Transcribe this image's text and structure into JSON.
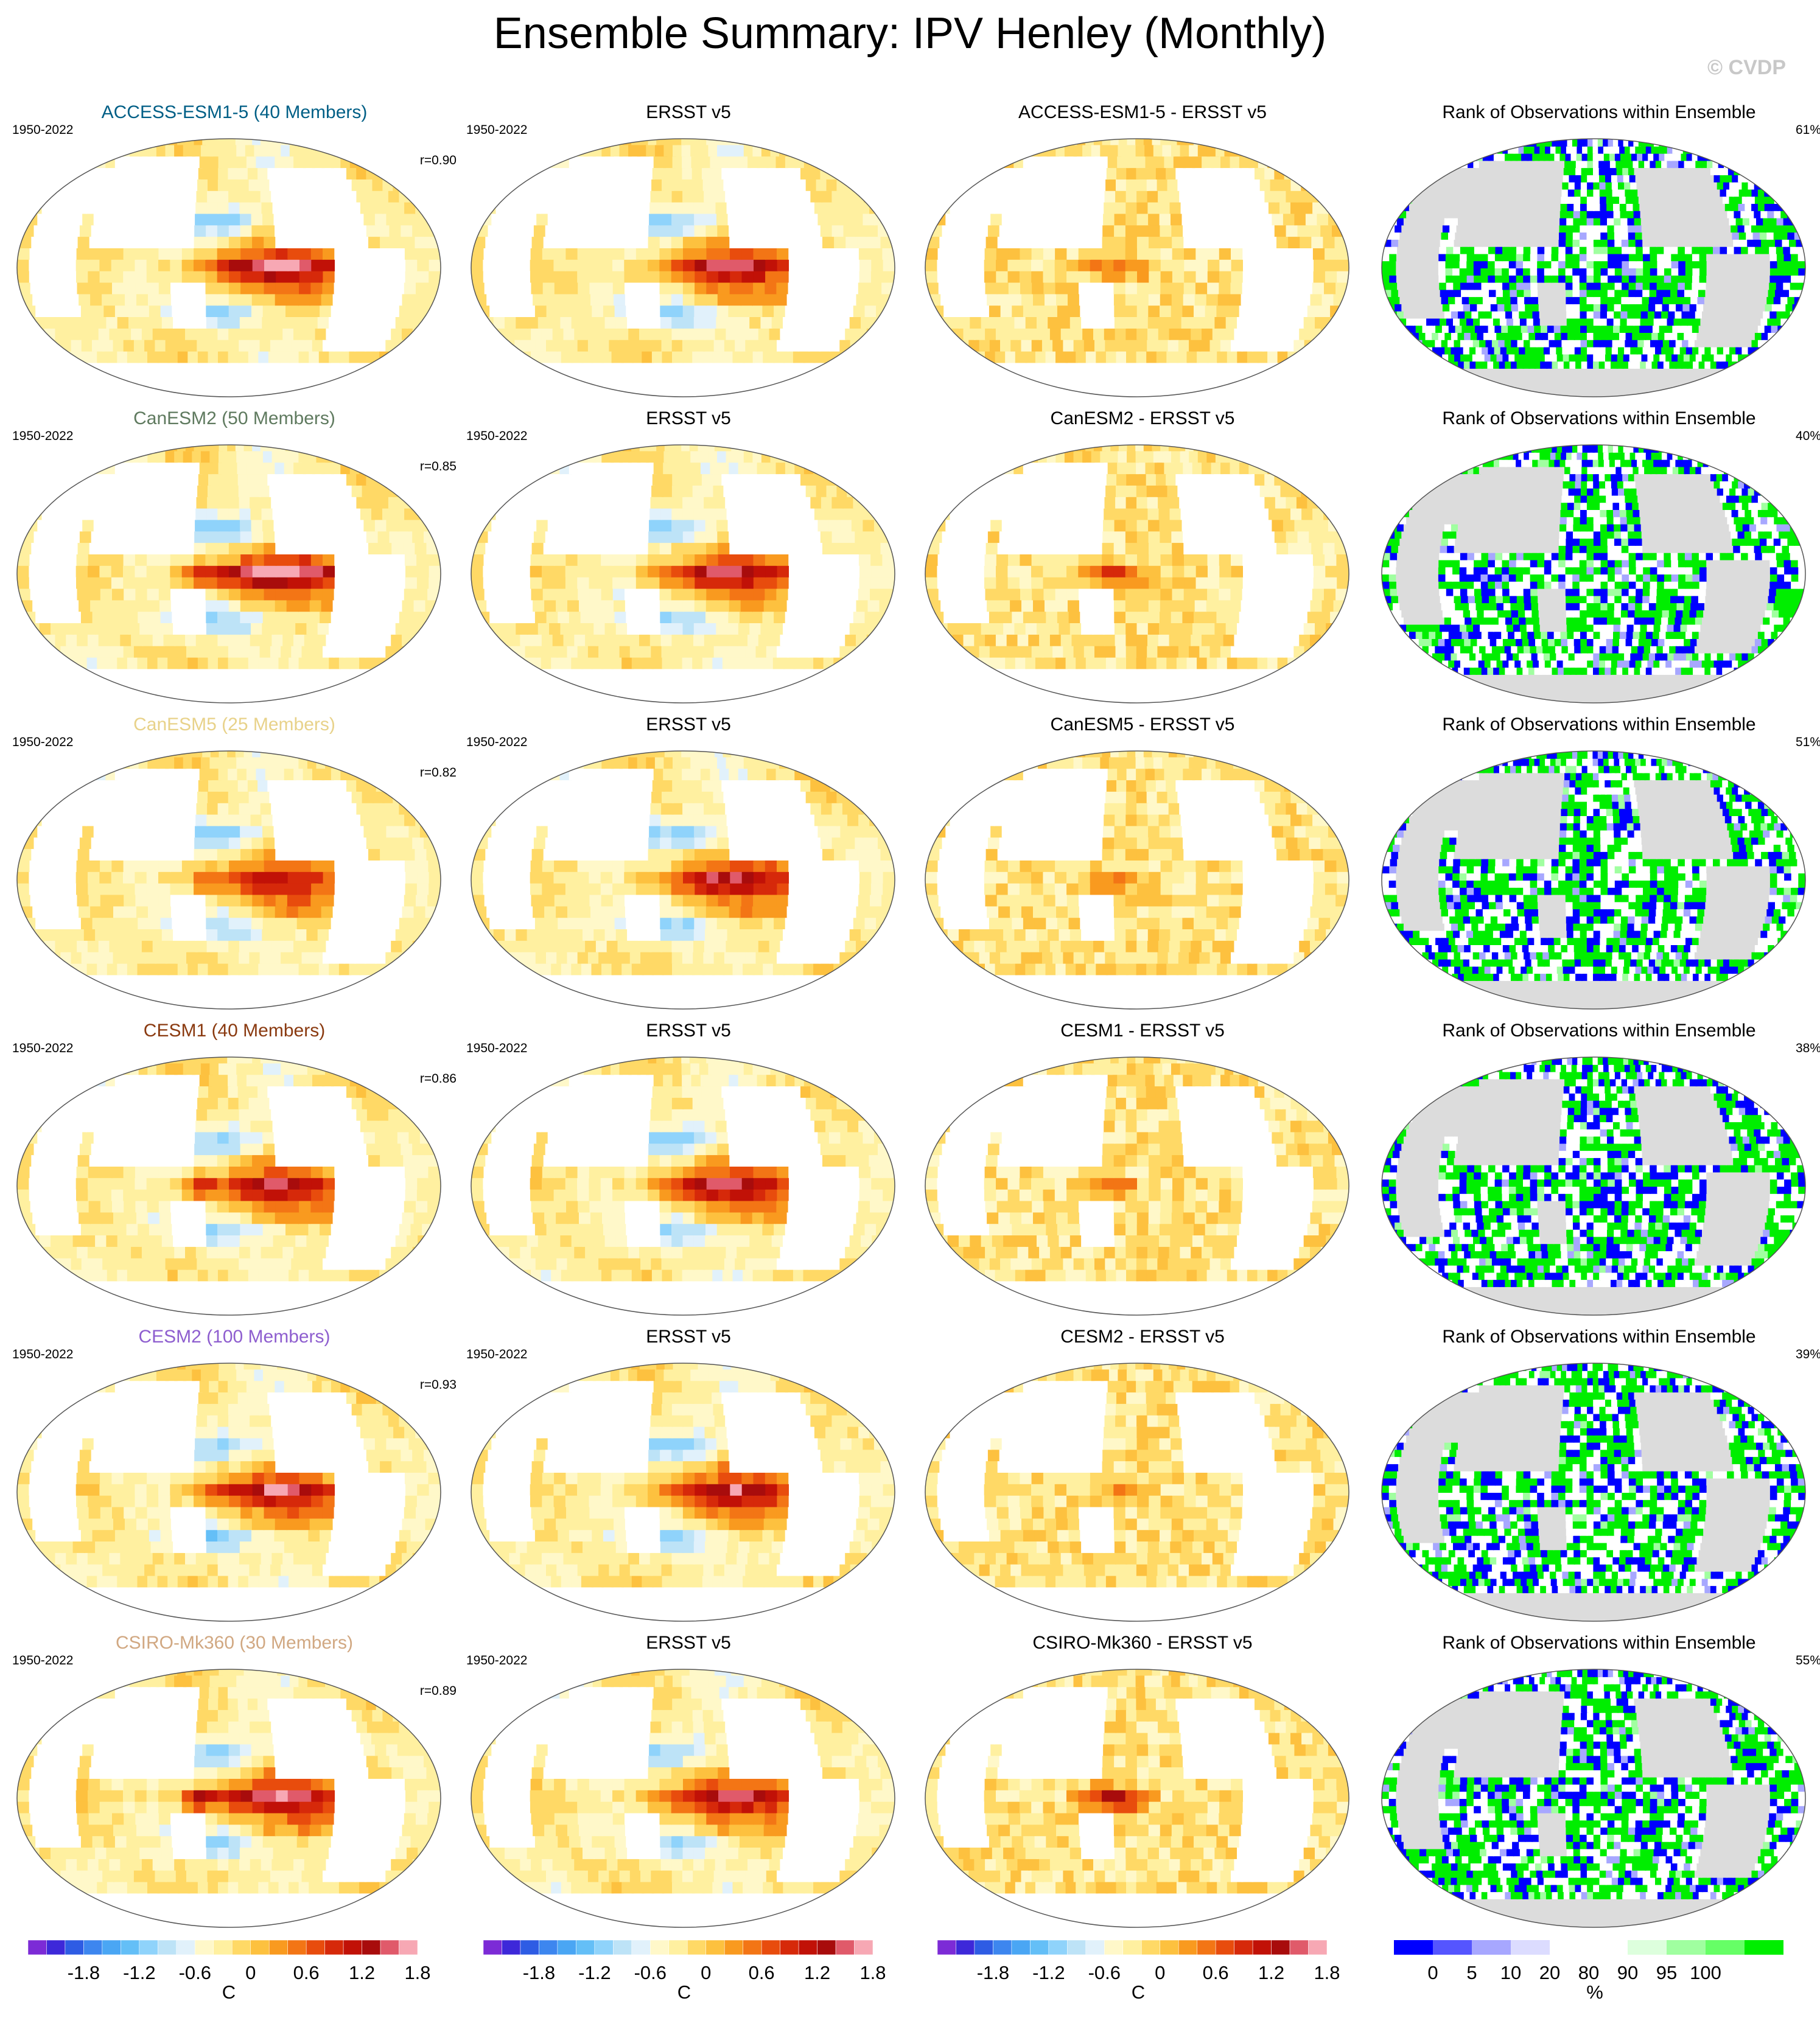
{
  "title": "Ensemble Summary: IPV Henley (Monthly)",
  "copyright": "© CVDP",
  "colors": {
    "anomaly_scale": [
      "#7c2bd6",
      "#3d28d9",
      "#2e5ce4",
      "#3d86ef",
      "#4aa6f4",
      "#64bff7",
      "#8fd3fb",
      "#bde3f7",
      "#e1f1fb",
      "#fff8c9",
      "#fff0a0",
      "#ffd966",
      "#fdc13f",
      "#f99a1f",
      "#f37515",
      "#e84c0d",
      "#d6290a",
      "#c11107",
      "#a80c0c",
      "#e05a6a",
      "#f7a8b4"
    ],
    "rank_scale": [
      "#0000ff",
      "#5555ff",
      "#a7a7ff",
      "#dcdcff",
      "#ffffff",
      "#ffffff",
      "#ddffdd",
      "#a0ffa0",
      "#66ff66",
      "#00ee00"
    ],
    "land_rank": "#dcdcdc",
    "outline": "#555555"
  },
  "rows": [
    {
      "model": "ACCESS-ESM1-5 (40 Members)",
      "model_color": "#005f86",
      "years": "1950-2022",
      "corr": "r=0.90",
      "obs_title": "ERSST v5",
      "obs_years": "1950-2022",
      "diff_title": "ACCESS-ESM1-5 - ERSST v5",
      "rank_title": "Rank of Observations within Ensemble",
      "rank_pct": "61%",
      "amp": 1.8,
      "warm_pool": 0.0,
      "diff_amp": 0.8,
      "rank_seed": 11
    },
    {
      "model": "CanESM2 (50 Members)",
      "model_color": "#5f7a5f",
      "years": "1950-2022",
      "corr": "r=0.85",
      "obs_title": "ERSST v5",
      "obs_years": "1950-2022",
      "diff_title": "CanESM2 - ERSST v5",
      "rank_title": "Rank of Observations within Ensemble",
      "rank_pct": "40%",
      "amp": 2.0,
      "warm_pool": 0.6,
      "diff_amp": 1.2,
      "rank_seed": 23
    },
    {
      "model": "CanESM5 (25 Members)",
      "model_color": "#e8d28a",
      "years": "1950-2022",
      "corr": "r=0.82",
      "obs_title": "ERSST v5",
      "obs_years": "1950-2022",
      "diff_title": "CanESM5 - ERSST v5",
      "rank_title": "Rank of Observations within Ensemble",
      "rank_pct": "51%",
      "amp": 1.3,
      "warm_pool": 0.4,
      "diff_amp": 0.9,
      "rank_seed": 37
    },
    {
      "model": "CESM1 (40 Members)",
      "model_color": "#8a3a10",
      "years": "1950-2022",
      "corr": "r=0.86",
      "obs_title": "ERSST v5",
      "obs_years": "1950-2022",
      "diff_title": "CESM1 - ERSST v5",
      "rank_title": "Rank of Observations within Ensemble",
      "rank_pct": "38%",
      "amp": 1.5,
      "warm_pool": 0.8,
      "diff_amp": 0.6,
      "rank_seed": 41
    },
    {
      "model": "CESM2 (100 Members)",
      "model_color": "#8e5ecf",
      "years": "1950-2022",
      "corr": "r=0.93",
      "obs_title": "ERSST v5",
      "obs_years": "1950-2022",
      "diff_title": "CESM2 - ERSST v5",
      "rank_title": "Rank of Observations within Ensemble",
      "rank_pct": "39%",
      "amp": 1.6,
      "warm_pool": 0.2,
      "diff_amp": 0.5,
      "rank_seed": 53
    },
    {
      "model": "CSIRO-Mk360 (30 Members)",
      "model_color": "#d1a882",
      "years": "1950-2022",
      "corr": "r=0.89",
      "obs_title": "ERSST v5",
      "obs_years": "1950-2022",
      "diff_title": "CSIRO-Mk360 - ERSST v5",
      "rank_title": "Rank of Observations within Ensemble",
      "rank_pct": "55%",
      "amp": 1.7,
      "warm_pool": 1.2,
      "diff_amp": 1.5,
      "rank_seed": 67
    }
  ],
  "colorbars": {
    "anomaly_ticks": [
      "-1.8",
      "-1.2",
      "-0.6",
      "0",
      "0.6",
      "1.2",
      "1.8"
    ],
    "anomaly_unit": "C",
    "rank_ticks": [
      "0",
      "5",
      "10",
      "20",
      "80",
      "90",
      "95",
      "100"
    ],
    "rank_unit": "%"
  }
}
